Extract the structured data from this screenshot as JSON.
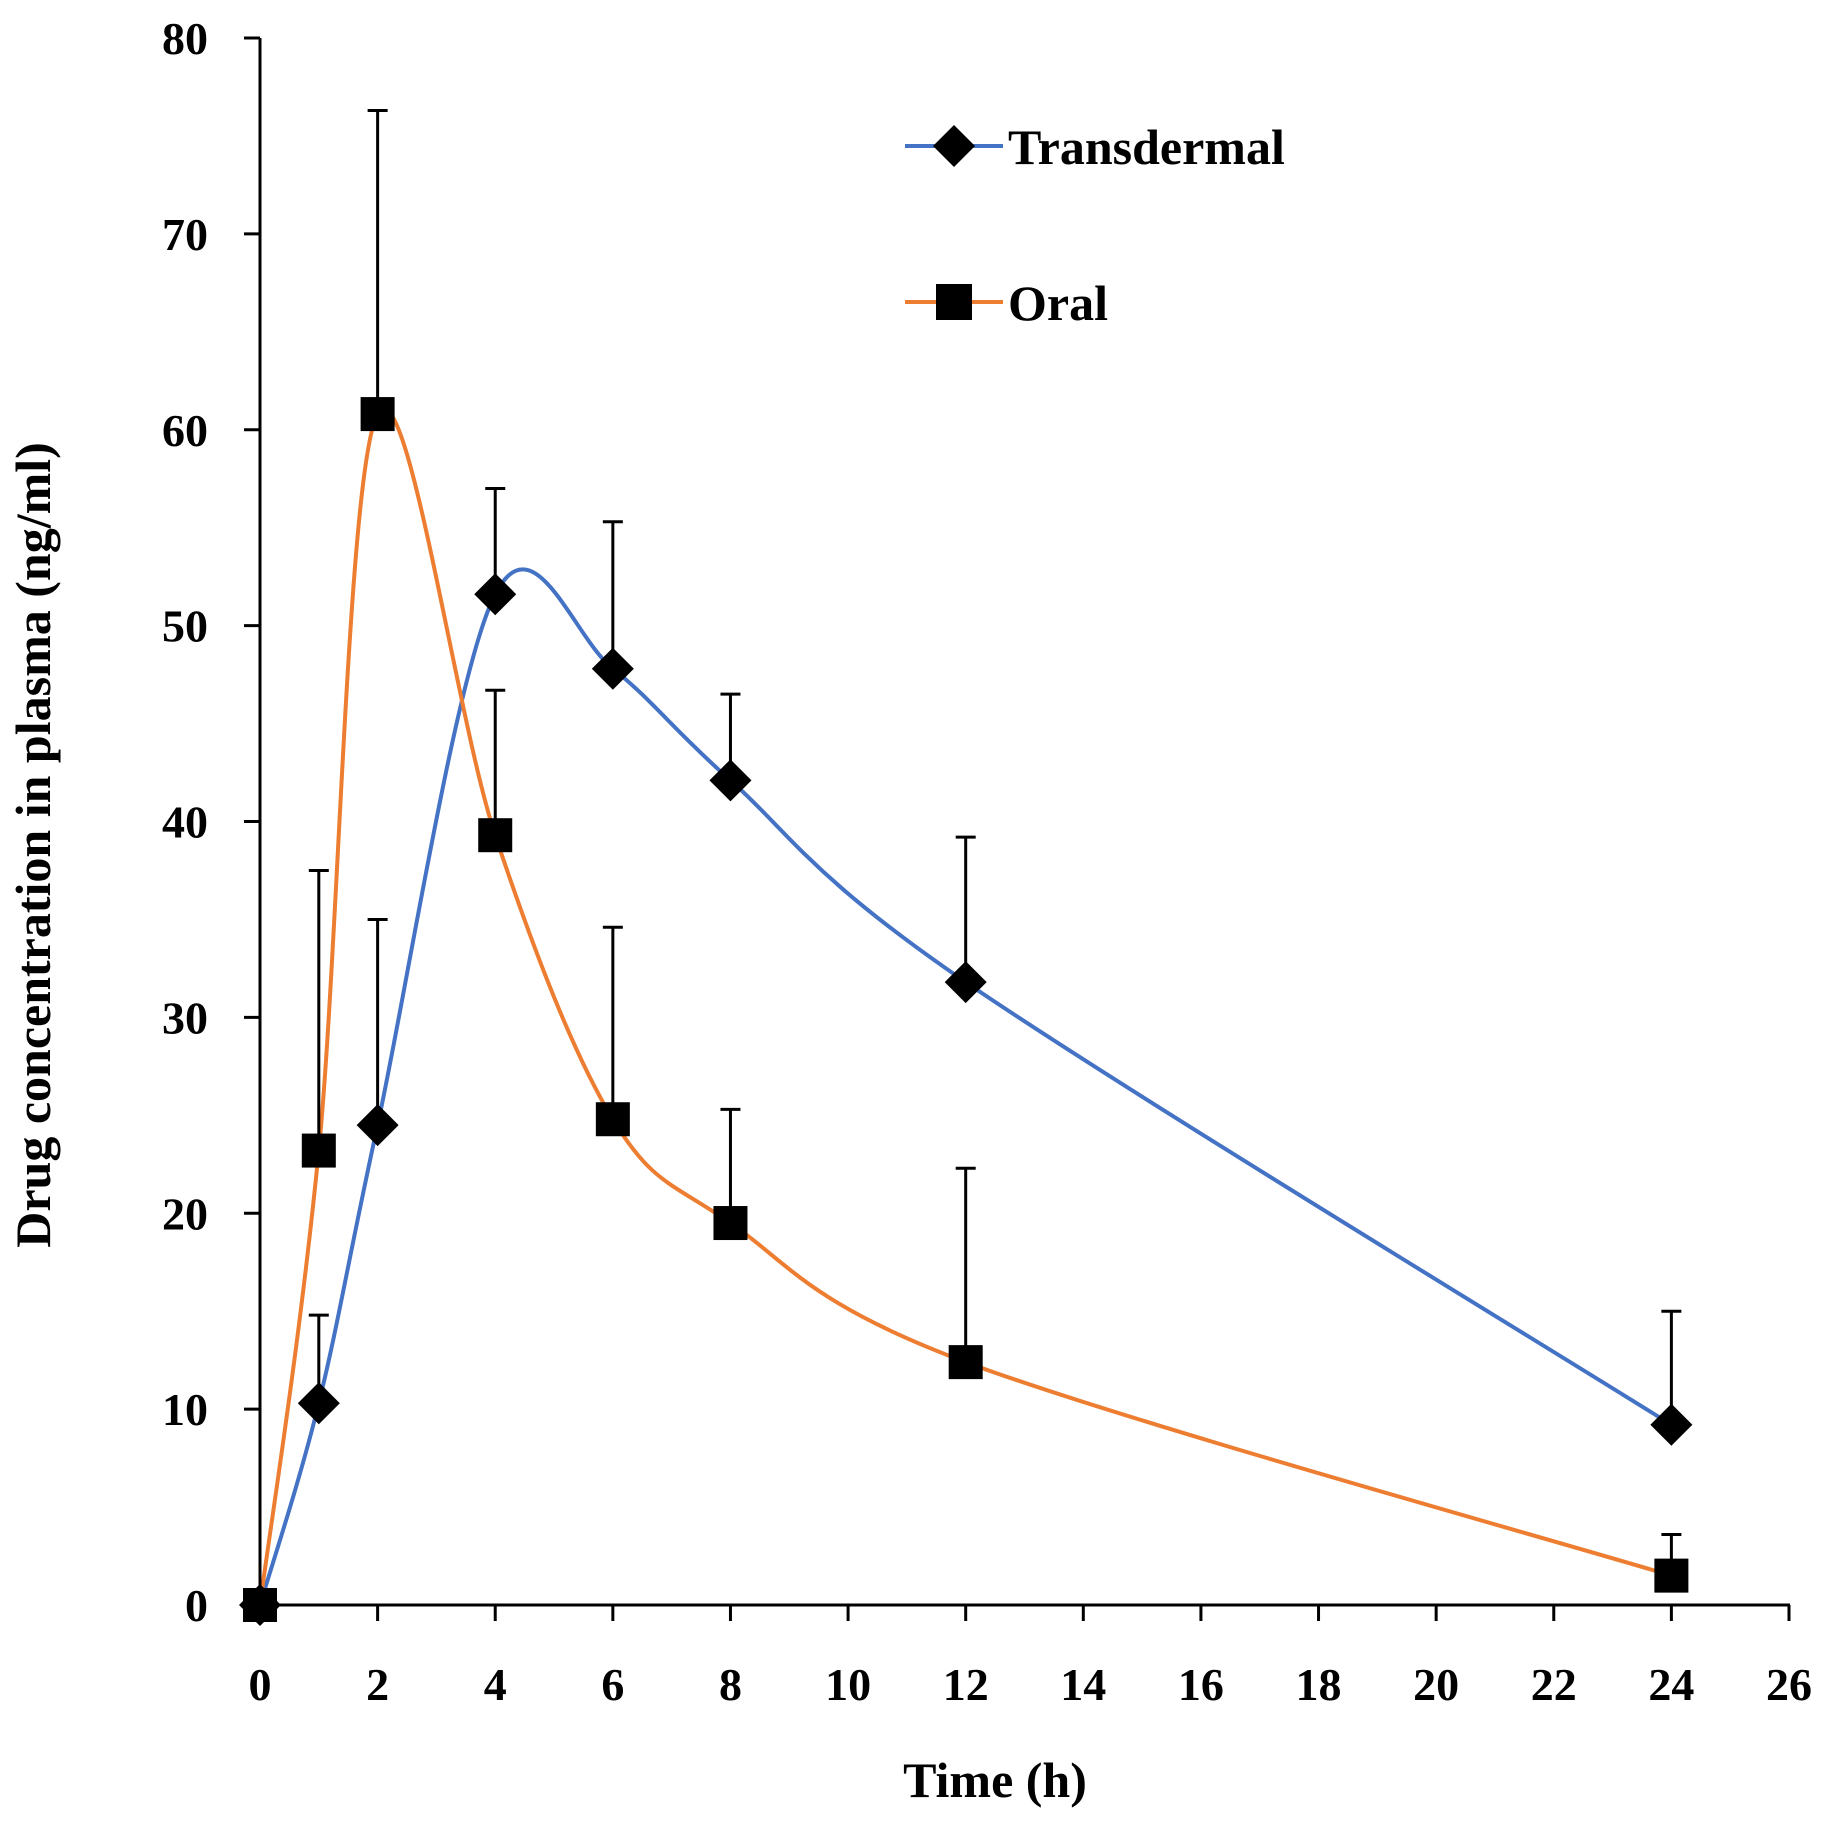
{
  "chart_data": {
    "type": "line",
    "title": "",
    "xlabel": "Time (h)",
    "ylabel": "Drug concentration in plasma (ng/ml)",
    "xlim": [
      0,
      26
    ],
    "ylim": [
      0,
      80
    ],
    "xticks": [
      0,
      2,
      4,
      6,
      8,
      10,
      12,
      14,
      16,
      18,
      20,
      22,
      24,
      26
    ],
    "yticks": [
      0,
      10,
      20,
      30,
      40,
      50,
      60,
      70,
      80
    ],
    "grid": false,
    "legend_position": "top-right",
    "series": [
      {
        "name": "Transdermal",
        "marker": "diamond",
        "color": "#4472C4",
        "x": [
          0,
          1,
          2,
          4,
          6,
          8,
          12,
          24
        ],
        "values": [
          0,
          10.3,
          24.5,
          51.6,
          47.8,
          42.1,
          31.8,
          9.2
        ],
        "error_upper": [
          0,
          4.5,
          10.5,
          5.4,
          7.5,
          4.4,
          7.4,
          5.8
        ]
      },
      {
        "name": "Oral",
        "marker": "square",
        "color": "#ED7D31",
        "x": [
          0,
          1,
          2,
          4,
          6,
          8,
          12,
          24
        ],
        "values": [
          0,
          23.2,
          60.8,
          39.3,
          24.8,
          19.5,
          12.4,
          1.5
        ],
        "error_upper": [
          0,
          14.3,
          15.5,
          7.4,
          9.8,
          5.8,
          9.9,
          2.1
        ]
      }
    ]
  }
}
